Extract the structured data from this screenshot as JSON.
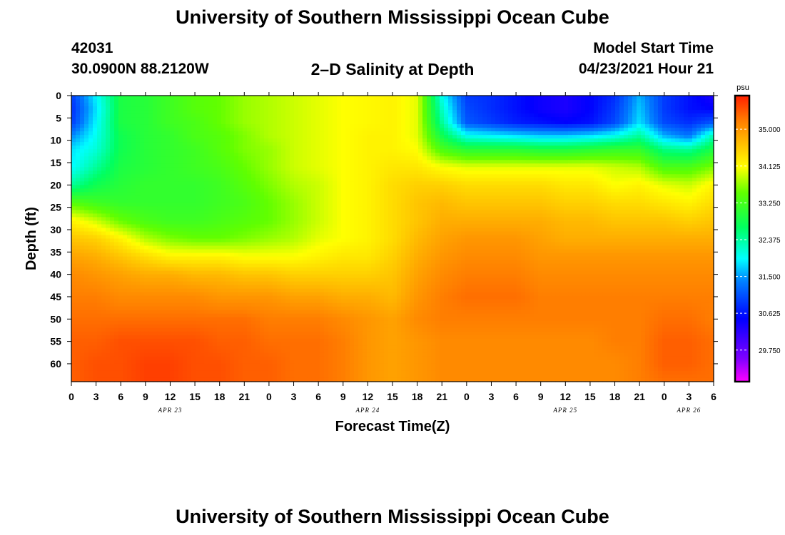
{
  "page": {
    "title_top": "University of Southern Mississippi Ocean Cube",
    "title_bottom": "University of Southern Mississippi Ocean Cube",
    "station_id": "42031",
    "station_coords": "30.0900N  88.2120W",
    "model_start_label": "Model Start Time",
    "model_start_value": "04/23/2021 Hour 21"
  },
  "chart_data": {
    "type": "heatmap",
    "title": "2–D Salinity at Depth",
    "xlabel": "Forecast Time(Z)",
    "ylabel": "Depth (ft)",
    "ylim": [
      0,
      64
    ],
    "y_ticks": [
      0,
      5,
      10,
      15,
      20,
      25,
      30,
      35,
      40,
      45,
      50,
      55,
      60
    ],
    "x_range_hours": [
      0,
      78
    ],
    "x_start": "2021-04-23 00Z",
    "x_ticks": [
      "0",
      "3",
      "6",
      "9",
      "12",
      "15",
      "18",
      "21",
      "0",
      "3",
      "6",
      "9",
      "12",
      "15",
      "18",
      "21",
      "0",
      "3",
      "6",
      "9",
      "12",
      "15",
      "18",
      "21",
      "0",
      "3",
      "6"
    ],
    "date_labels": [
      {
        "label": "APR 23",
        "hour": 12
      },
      {
        "label": "APR 24",
        "hour": 36
      },
      {
        "label": "APR 25",
        "hour": 60
      },
      {
        "label": "APR 26",
        "hour": 75
      }
    ],
    "colorbar": {
      "unit": "psu",
      "range": [
        29.0,
        35.8
      ],
      "ticks": [
        "35.000",
        "34.125",
        "33.250",
        "32.375",
        "31.500",
        "30.625",
        "29.750"
      ],
      "tick_values": [
        35.0,
        34.125,
        33.25,
        32.375,
        31.5,
        30.625,
        29.75
      ]
    },
    "grid_hours": [
      0,
      3,
      6,
      9,
      12,
      15,
      18,
      21,
      24,
      27,
      30,
      33,
      36,
      39,
      42,
      45,
      48,
      51,
      54,
      57,
      60,
      63,
      66,
      69,
      72,
      75,
      78
    ],
    "grid_depths": [
      0,
      3,
      6,
      9,
      12,
      16,
      20,
      24,
      28,
      32,
      36,
      40,
      45,
      50,
      55,
      60,
      64
    ],
    "salinity_values": [
      [
        30.9,
        31.9,
        32.9,
        33.0,
        33.2,
        33.4,
        33.5,
        33.7,
        33.8,
        33.9,
        34.0,
        34.1,
        34.15,
        34.2,
        34.0,
        32.0,
        30.9,
        30.8,
        30.6,
        30.4,
        30.3,
        30.5,
        30.8,
        31.6,
        30.9,
        30.6,
        30.3
      ],
      [
        30.8,
        31.8,
        32.9,
        33.0,
        33.2,
        33.4,
        33.5,
        33.7,
        33.8,
        33.9,
        34.0,
        34.1,
        34.15,
        34.2,
        34.0,
        32.2,
        31.0,
        30.8,
        30.6,
        30.4,
        30.3,
        30.5,
        30.9,
        31.7,
        30.9,
        30.6,
        30.5
      ],
      [
        30.9,
        31.9,
        32.9,
        33.0,
        33.2,
        33.3,
        33.5,
        33.7,
        33.8,
        33.9,
        34.0,
        34.1,
        34.15,
        34.2,
        34.0,
        32.4,
        31.1,
        30.9,
        30.7,
        30.6,
        30.5,
        30.6,
        31.0,
        31.8,
        31.0,
        30.8,
        31.1
      ],
      [
        31.4,
        32.0,
        32.8,
        33.0,
        33.1,
        33.3,
        33.4,
        33.6,
        33.8,
        33.9,
        34.0,
        34.1,
        34.2,
        34.2,
        34.0,
        32.8,
        32.0,
        31.9,
        31.8,
        31.7,
        31.7,
        31.8,
        32.0,
        32.4,
        31.6,
        31.3,
        32.3
      ],
      [
        31.8,
        32.1,
        32.8,
        33.0,
        33.1,
        33.2,
        33.4,
        33.6,
        33.7,
        33.9,
        34.0,
        34.1,
        34.2,
        34.2,
        34.1,
        33.3,
        33.0,
        33.0,
        33.0,
        32.9,
        32.9,
        33.0,
        33.1,
        33.1,
        32.5,
        32.4,
        32.9
      ],
      [
        31.9,
        32.4,
        32.9,
        33.0,
        33.1,
        33.2,
        33.3,
        33.5,
        33.7,
        33.9,
        34.0,
        34.1,
        34.2,
        34.3,
        34.3,
        34.1,
        34.0,
        34.0,
        34.0,
        34.0,
        34.0,
        34.0,
        33.9,
        33.8,
        33.3,
        33.3,
        33.6
      ],
      [
        32.4,
        32.8,
        33.0,
        33.1,
        33.1,
        33.1,
        33.2,
        33.4,
        33.6,
        33.8,
        33.9,
        34.1,
        34.2,
        34.4,
        34.5,
        34.5,
        34.4,
        34.4,
        34.4,
        34.4,
        34.3,
        34.3,
        34.1,
        34.2,
        34.0,
        33.9,
        34.2
      ],
      [
        33.4,
        33.2,
        33.1,
        33.1,
        33.1,
        33.1,
        33.2,
        33.3,
        33.5,
        33.7,
        33.9,
        34.1,
        34.2,
        34.4,
        34.6,
        34.7,
        34.6,
        34.6,
        34.6,
        34.6,
        34.5,
        34.5,
        34.4,
        34.4,
        34.3,
        34.2,
        34.4
      ],
      [
        34.2,
        33.9,
        33.5,
        33.3,
        33.2,
        33.2,
        33.3,
        33.4,
        33.5,
        33.7,
        33.9,
        34.1,
        34.2,
        34.4,
        34.6,
        34.8,
        34.8,
        34.8,
        34.8,
        34.8,
        34.7,
        34.7,
        34.6,
        34.6,
        34.6,
        34.5,
        34.6
      ],
      [
        34.6,
        34.5,
        34.2,
        33.8,
        33.6,
        33.5,
        33.5,
        33.6,
        33.7,
        33.8,
        34.0,
        34.1,
        34.2,
        34.4,
        34.7,
        34.9,
        35.0,
        35.0,
        35.0,
        34.9,
        34.8,
        34.8,
        34.8,
        34.8,
        34.8,
        34.8,
        34.8
      ],
      [
        34.9,
        34.8,
        34.6,
        34.4,
        34.2,
        34.2,
        34.2,
        34.1,
        34.1,
        34.1,
        34.2,
        34.3,
        34.3,
        34.5,
        34.8,
        35.0,
        35.1,
        35.1,
        35.1,
        35.0,
        35.0,
        35.0,
        35.0,
        35.0,
        35.0,
        35.0,
        35.0
      ],
      [
        35.1,
        35.0,
        34.9,
        34.8,
        34.8,
        34.7,
        34.7,
        34.6,
        34.6,
        34.5,
        34.5,
        34.5,
        34.5,
        34.6,
        34.9,
        35.1,
        35.2,
        35.2,
        35.2,
        35.1,
        35.1,
        35.1,
        35.1,
        35.1,
        35.1,
        35.1,
        35.1
      ],
      [
        35.2,
        35.2,
        35.1,
        35.1,
        35.1,
        35.1,
        35.0,
        35.0,
        35.0,
        34.9,
        34.9,
        34.8,
        34.8,
        34.7,
        35.0,
        35.2,
        35.3,
        35.3,
        35.3,
        35.2,
        35.2,
        35.2,
        35.2,
        35.2,
        35.2,
        35.2,
        35.2
      ],
      [
        35.3,
        35.3,
        35.3,
        35.3,
        35.3,
        35.3,
        35.3,
        35.3,
        35.2,
        35.2,
        35.2,
        35.1,
        35.0,
        34.9,
        35.1,
        35.2,
        35.2,
        35.2,
        35.2,
        35.2,
        35.2,
        35.2,
        35.2,
        35.2,
        35.3,
        35.3,
        35.2
      ],
      [
        35.4,
        35.4,
        35.5,
        35.5,
        35.5,
        35.5,
        35.4,
        35.4,
        35.3,
        35.3,
        35.3,
        35.2,
        35.0,
        34.9,
        35.0,
        35.1,
        35.1,
        35.1,
        35.1,
        35.1,
        35.1,
        35.1,
        35.2,
        35.2,
        35.4,
        35.4,
        35.3
      ],
      [
        35.4,
        35.5,
        35.5,
        35.6,
        35.6,
        35.5,
        35.5,
        35.4,
        35.4,
        35.3,
        35.3,
        35.2,
        35.0,
        34.9,
        35.0,
        35.1,
        35.1,
        35.1,
        35.1,
        35.1,
        35.1,
        35.1,
        35.1,
        35.2,
        35.4,
        35.4,
        35.3
      ],
      [
        35.4,
        35.5,
        35.5,
        35.6,
        35.6,
        35.5,
        35.5,
        35.4,
        35.4,
        35.3,
        35.3,
        35.2,
        35.0,
        34.9,
        35.0,
        35.1,
        35.1,
        35.1,
        35.1,
        35.1,
        35.1,
        35.1,
        35.1,
        35.2,
        35.3,
        35.3,
        35.3
      ]
    ]
  }
}
